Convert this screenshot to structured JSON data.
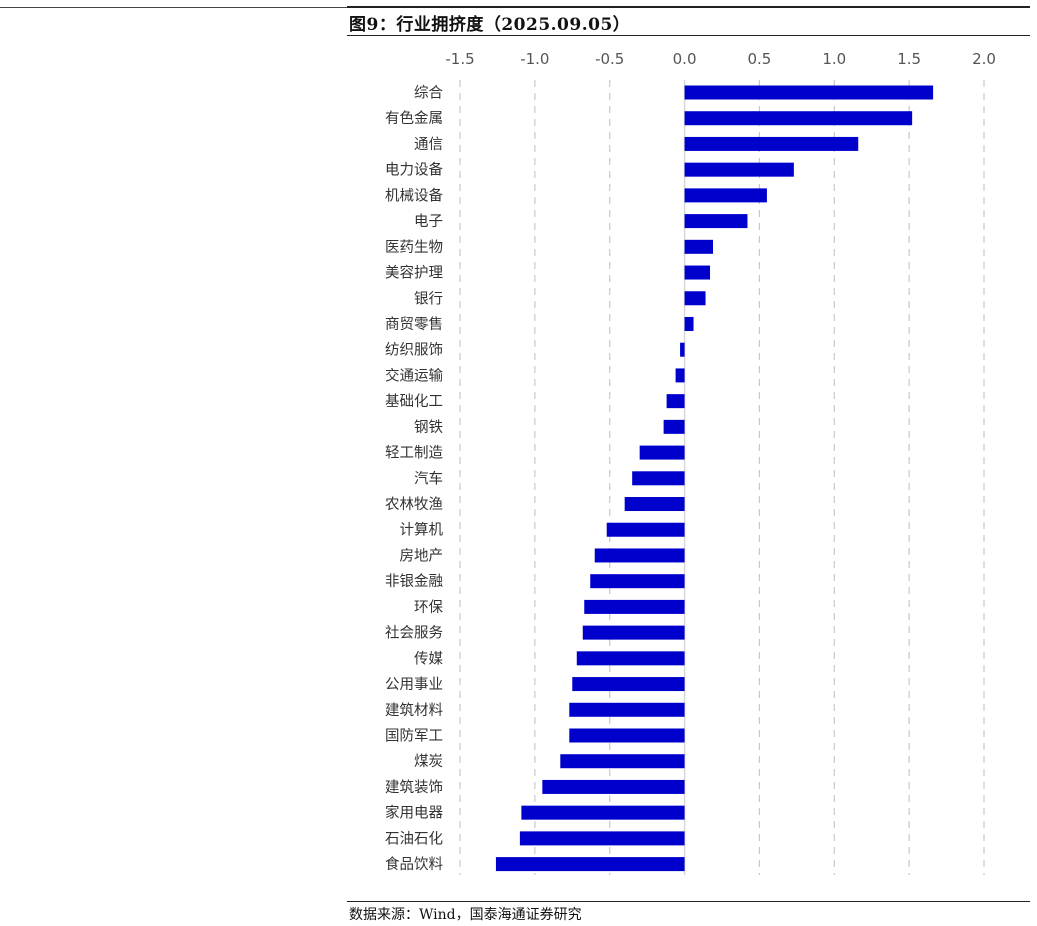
{
  "figure": {
    "title": "图9：行业拥挤度（2025.09.05）",
    "source": "数据来源：Wind，国泰海通证券研究"
  },
  "colors": {
    "bar": "#0000cc",
    "grid": "#c8c8c8",
    "zero_line": "#d8d8d8"
  },
  "chart_data": {
    "type": "bar",
    "orientation": "horizontal",
    "title": "图9：行业拥挤度（2025.09.05）",
    "xlabel": "",
    "ylabel": "",
    "xlim": [
      -1.5,
      2.0
    ],
    "x_ticks": [
      "-1.5",
      "-1.0",
      "-0.5",
      "0.0",
      "0.5",
      "1.0",
      "1.5",
      "2.0"
    ],
    "x_tick_values": [
      -1.5,
      -1.0,
      -0.5,
      0.0,
      0.5,
      1.0,
      1.5,
      2.0
    ],
    "x_axis_position": "top",
    "grid": "vertical dashed",
    "legend": "none",
    "categories": [
      "综合",
      "有色金属",
      "通信",
      "电力设备",
      "机械设备",
      "电子",
      "医药生物",
      "美容护理",
      "银行",
      "商贸零售",
      "纺织服饰",
      "交通运输",
      "基础化工",
      "钢铁",
      "轻工制造",
      "汽车",
      "农林牧渔",
      "计算机",
      "房地产",
      "非银金融",
      "环保",
      "社会服务",
      "传媒",
      "公用事业",
      "建筑材料",
      "国防军工",
      "煤炭",
      "建筑装饰",
      "家用电器",
      "石油石化",
      "食品饮料"
    ],
    "values": [
      1.66,
      1.52,
      1.16,
      0.73,
      0.55,
      0.42,
      0.19,
      0.17,
      0.14,
      0.06,
      -0.03,
      -0.06,
      -0.12,
      -0.14,
      -0.3,
      -0.35,
      -0.4,
      -0.52,
      -0.6,
      -0.63,
      -0.67,
      -0.68,
      -0.72,
      -0.75,
      -0.77,
      -0.77,
      -0.83,
      -0.95,
      -1.09,
      -1.1,
      -1.26
    ]
  }
}
